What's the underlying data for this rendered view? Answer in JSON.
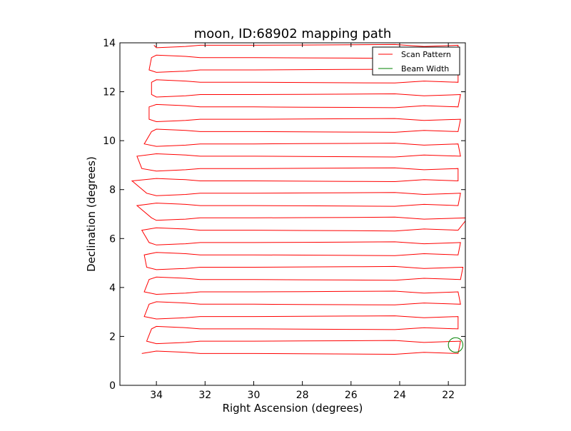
{
  "chart_data": {
    "type": "line",
    "title": "moon, ID:68902 mapping path",
    "xlabel": "Right Ascension (degrees)",
    "ylabel": "Declination (degrees)",
    "xlim": [
      35.5,
      21.3
    ],
    "ylim": [
      0,
      14
    ],
    "x_ticks": [
      34,
      32,
      30,
      28,
      26,
      24,
      22
    ],
    "y_ticks": [
      0,
      2,
      4,
      6,
      8,
      10,
      12,
      14
    ],
    "grid": false,
    "legend": {
      "position": "top-right"
    },
    "scan": {
      "rows": 26,
      "dec_start": 1.3,
      "dec_end": 13.9,
      "ra_east_ends": [
        34.6,
        34.4,
        34.2,
        34.5,
        34.3,
        34.5,
        34.3,
        34.4,
        34.5,
        34.3,
        34.6,
        34.2,
        34.8,
        34.4,
        35.0,
        34.6,
        34.8,
        34.5,
        34.2,
        34.3,
        34.3,
        34.2,
        34.2,
        34.3,
        34.2,
        34.1
      ],
      "ra_west_ends": [
        21.6,
        21.5,
        21.6,
        21.6,
        21.5,
        21.6,
        21.5,
        21.4,
        21.6,
        21.5,
        21.6,
        21.2,
        21.6,
        21.5,
        21.6,
        21.6,
        21.5,
        21.6,
        21.6,
        21.5,
        21.6,
        21.5,
        21.6,
        21.6,
        21.6,
        21.6
      ]
    },
    "series": [
      {
        "name": "Scan Pattern",
        "color": "#ff0000"
      },
      {
        "name": "Beam Width",
        "color": "#008000",
        "center": [
          21.7,
          1.65
        ],
        "radius": 0.3
      }
    ]
  }
}
